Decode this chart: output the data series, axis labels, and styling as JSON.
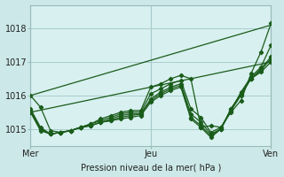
{
  "xlabel": "Pression niveau de la mer( hPa )",
  "background_color": "#cce8e8",
  "plot_bg_color": "#d8f0f0",
  "grid_color": "#aacccc",
  "line_color": "#1a5c1a",
  "xlim": [
    0,
    48
  ],
  "ylim": [
    1014.5,
    1018.7
  ],
  "yticks": [
    1015,
    1016,
    1017,
    1018
  ],
  "xticks": [
    0,
    24,
    48
  ],
  "xtick_labels": [
    "Mer",
    "Jeu",
    "Ven"
  ],
  "lines": [
    [
      0,
      1016.0,
      2,
      1015.65,
      4,
      1014.95,
      6,
      1014.9,
      8,
      1014.95,
      10,
      1015.05,
      12,
      1015.15,
      14,
      1015.3,
      16,
      1015.4,
      18,
      1015.5,
      20,
      1015.55,
      22,
      1015.55,
      24,
      1016.25,
      26,
      1016.35,
      28,
      1016.5,
      30,
      1016.6,
      32,
      1016.5,
      34,
      1015.05,
      36,
      1015.1,
      38,
      1015.05,
      40,
      1015.5,
      42,
      1015.85,
      44,
      1016.65,
      46,
      1017.3,
      48,
      1018.15
    ],
    [
      0,
      1015.6,
      2,
      1015.05,
      4,
      1014.85,
      6,
      1014.9,
      8,
      1014.95,
      10,
      1015.05,
      12,
      1015.15,
      14,
      1015.25,
      16,
      1015.35,
      18,
      1015.45,
      20,
      1015.5,
      22,
      1015.5,
      24,
      1016.05,
      26,
      1016.2,
      28,
      1016.35,
      30,
      1016.45,
      32,
      1015.6,
      34,
      1015.35,
      36,
      1014.9,
      38,
      1015.05,
      40,
      1015.55,
      42,
      1016.1,
      44,
      1016.55,
      46,
      1016.85,
      48,
      1017.5
    ],
    [
      0,
      1015.55,
      2,
      1015.0,
      4,
      1014.85,
      6,
      1014.9,
      8,
      1014.95,
      10,
      1015.05,
      12,
      1015.1,
      14,
      1015.2,
      16,
      1015.3,
      18,
      1015.4,
      20,
      1015.45,
      22,
      1015.45,
      24,
      1015.9,
      26,
      1016.1,
      28,
      1016.25,
      30,
      1016.35,
      32,
      1015.45,
      34,
      1015.2,
      36,
      1014.85,
      38,
      1015.0,
      40,
      1015.6,
      42,
      1016.05,
      44,
      1016.5,
      46,
      1016.8,
      48,
      1017.15
    ],
    [
      0,
      1015.55,
      2,
      1015.0,
      4,
      1014.85,
      6,
      1014.9,
      8,
      1014.95,
      10,
      1015.05,
      12,
      1015.1,
      14,
      1015.2,
      16,
      1015.25,
      18,
      1015.35,
      20,
      1015.4,
      22,
      1015.45,
      24,
      1015.85,
      26,
      1016.05,
      28,
      1016.2,
      30,
      1016.3,
      32,
      1015.35,
      34,
      1015.1,
      36,
      1014.8,
      38,
      1015.0,
      40,
      1015.6,
      42,
      1016.05,
      44,
      1016.5,
      46,
      1016.75,
      48,
      1017.1
    ],
    [
      0,
      1015.5,
      2,
      1014.95,
      4,
      1014.85,
      6,
      1014.9,
      8,
      1014.95,
      10,
      1015.05,
      12,
      1015.1,
      14,
      1015.2,
      16,
      1015.25,
      18,
      1015.3,
      20,
      1015.35,
      22,
      1015.4,
      24,
      1015.8,
      26,
      1016.0,
      28,
      1016.15,
      30,
      1016.25,
      32,
      1015.3,
      34,
      1015.05,
      36,
      1014.75,
      38,
      1015.0,
      40,
      1015.55,
      42,
      1016.0,
      44,
      1016.5,
      46,
      1016.7,
      48,
      1017.0
    ],
    [
      0,
      1016.0,
      4,
      1015.7,
      24,
      1016.3,
      48,
      1018.1
    ],
    [
      0,
      1015.5,
      4,
      1015.45,
      24,
      1015.75,
      48,
      1017.0
    ]
  ],
  "straight_lines": [
    [
      [
        0,
        1016.0
      ],
      [
        48,
        1018.1
      ]
    ],
    [
      [
        0,
        1015.5
      ],
      [
        48,
        1017.0
      ]
    ]
  ],
  "marker": "D",
  "marker_size": 2.2,
  "line_width": 0.9,
  "straight_lw": 0.9
}
